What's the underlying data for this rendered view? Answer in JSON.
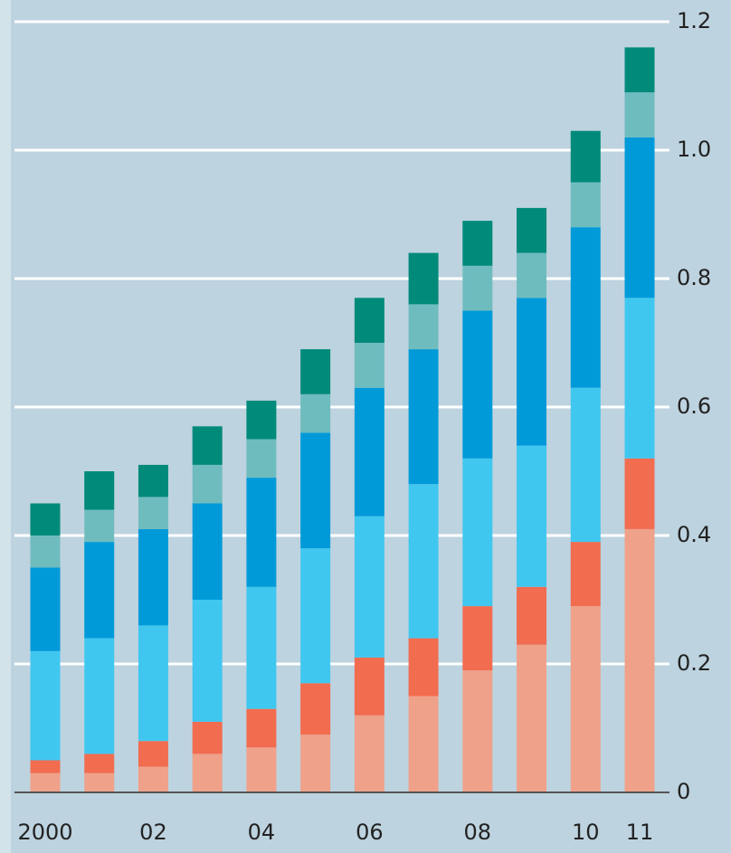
{
  "chart_data": {
    "type": "stacked-bar",
    "categories": [
      "2000",
      null,
      "02",
      null,
      "04",
      null,
      "06",
      null,
      "08",
      null,
      "10",
      "11"
    ],
    "series": [
      {
        "color": "#efa189",
        "values": [
          0.03,
          0.03,
          0.04,
          0.06,
          0.07,
          0.09,
          0.12,
          0.15,
          0.19,
          0.23,
          0.29,
          0.41
        ]
      },
      {
        "color": "#f26c50",
        "values": [
          0.02,
          0.03,
          0.04,
          0.05,
          0.06,
          0.08,
          0.09,
          0.09,
          0.1,
          0.09,
          0.1,
          0.11
        ]
      },
      {
        "color": "#40c7f0",
        "values": [
          0.17,
          0.18,
          0.18,
          0.19,
          0.19,
          0.21,
          0.22,
          0.24,
          0.23,
          0.22,
          0.24,
          0.25
        ]
      },
      {
        "color": "#009ad9",
        "values": [
          0.13,
          0.15,
          0.15,
          0.15,
          0.17,
          0.18,
          0.2,
          0.21,
          0.23,
          0.23,
          0.25,
          0.25
        ]
      },
      {
        "color": "#6fbcbf",
        "values": [
          0.05,
          0.05,
          0.05,
          0.06,
          0.06,
          0.06,
          0.07,
          0.07,
          0.07,
          0.07,
          0.07,
          0.07
        ]
      },
      {
        "color": "#008a7a",
        "values": [
          0.05,
          0.06,
          0.05,
          0.06,
          0.06,
          0.07,
          0.07,
          0.08,
          0.07,
          0.07,
          0.08,
          0.07
        ]
      }
    ],
    "ylim": [
      0,
      1.2
    ],
    "yticks": [
      0,
      0.2,
      0.4,
      0.6,
      0.8,
      {
        "value": 1,
        "label": "1.0"
      },
      1.2
    ],
    "grid": true
  }
}
